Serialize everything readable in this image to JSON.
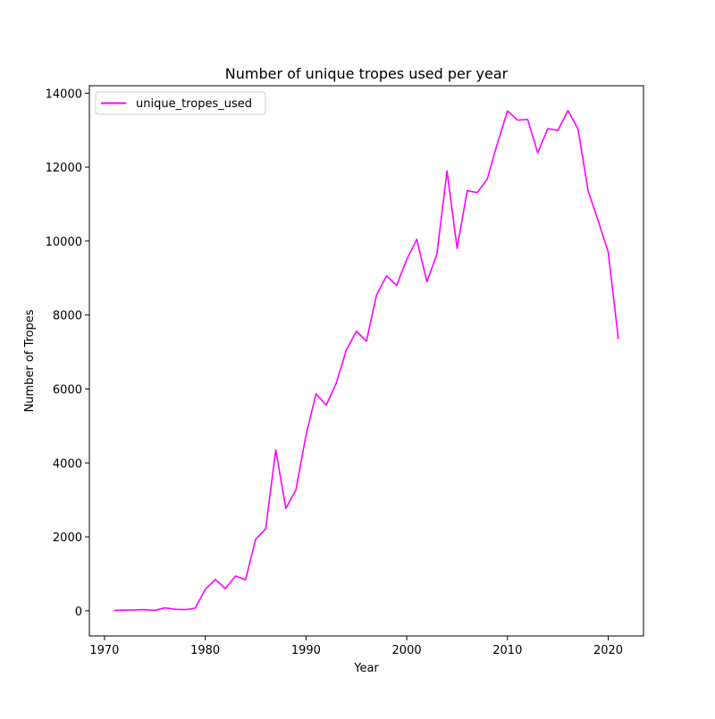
{
  "chart_data": {
    "type": "line",
    "title": "Number of unique tropes used per year",
    "xlabel": "Year",
    "ylabel": "Number of Tropes",
    "xlim": [
      1968.5,
      2023.5
    ],
    "ylim": [
      -680,
      14200
    ],
    "xticks": [
      1970,
      1980,
      1990,
      2000,
      2010,
      2020
    ],
    "yticks": [
      0,
      2000,
      4000,
      6000,
      8000,
      10000,
      12000,
      14000
    ],
    "grid": false,
    "legend": {
      "placement": "top-left"
    },
    "series": [
      {
        "name": "unique_tropes_used",
        "color": "#ff00ff",
        "x": [
          1971,
          1974,
          1975,
          1976,
          1977,
          1978,
          1979,
          1980,
          1981,
          1982,
          1983,
          1984,
          1985,
          1986,
          1987,
          1988,
          1989,
          1990,
          1991,
          1992,
          1993,
          1994,
          1995,
          1996,
          1997,
          1998,
          1999,
          2000,
          2001,
          2002,
          2003,
          2004,
          2005,
          2006,
          2007,
          2008,
          2009,
          2010,
          2011,
          2012,
          2013,
          2014,
          2015,
          2016,
          2017,
          2018,
          2019,
          2020,
          2021
        ],
        "y": [
          10,
          30,
          10,
          80,
          40,
          30,
          70,
          580,
          850,
          600,
          940,
          840,
          1930,
          2220,
          4350,
          2770,
          3270,
          4750,
          5870,
          5560,
          6150,
          7050,
          7560,
          7290,
          8540,
          9060,
          8800,
          9500,
          10050,
          8900,
          9650,
          11900,
          9800,
          11360,
          11310,
          11680,
          12640,
          13520,
          13270,
          13290,
          12390,
          13040,
          12990,
          13530,
          13030,
          11360,
          10550,
          9700,
          7360
        ]
      }
    ]
  }
}
